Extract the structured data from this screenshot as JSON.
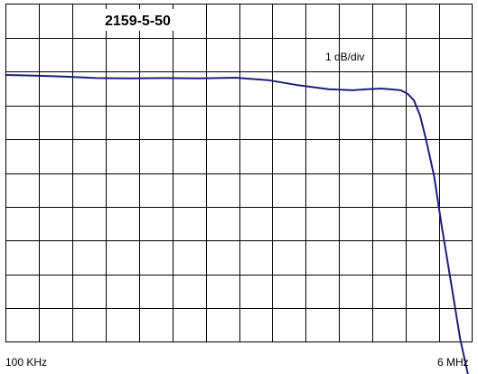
{
  "chart_data": {
    "type": "line",
    "title": "2159-5-50",
    "annotation": "1 dB/div",
    "x_tick_labels": [
      "100 KHz",
      "6 MHz"
    ],
    "x_scale": "log",
    "xlim": [
      0.1,
      6
    ],
    "y_divisions": 10,
    "x_divisions": 14,
    "grid": true,
    "series": [
      {
        "color": "#1f1f7a",
        "x": [
          0.1,
          0.13,
          0.17,
          0.22,
          0.3,
          0.4,
          0.55,
          0.75,
          1.0,
          1.3,
          1.7,
          2.1,
          2.4,
          2.7,
          3.0,
          3.2,
          3.4,
          3.6,
          3.8,
          4.0,
          4.3,
          4.6,
          5.0,
          5.4,
          5.8,
          6.0
        ],
        "y": [
          0.0,
          -0.02,
          -0.05,
          -0.09,
          -0.1,
          -0.09,
          -0.1,
          -0.08,
          -0.15,
          -0.3,
          -0.42,
          -0.45,
          -0.42,
          -0.4,
          -0.43,
          -0.45,
          -0.55,
          -0.75,
          -1.2,
          -1.9,
          -3.0,
          -4.5,
          -6.2,
          -7.8,
          -8.9,
          -9.3
        ]
      }
    ]
  }
}
